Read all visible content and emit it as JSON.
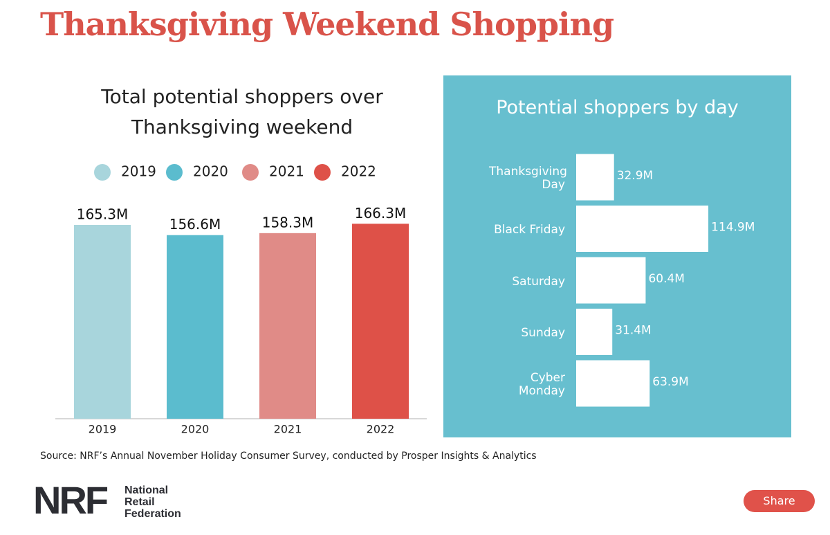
{
  "title": "Thanksgiving Weekend Shopping",
  "chart_data": [
    {
      "type": "bar",
      "title": "Total potential shoppers over Thanksgiving weekend",
      "categories": [
        "2019",
        "2020",
        "2021",
        "2022"
      ],
      "values": [
        165.3,
        156.6,
        158.3,
        166.3
      ],
      "value_labels": [
        "165.3M",
        "156.6M",
        "158.3M",
        "166.3M"
      ],
      "colors": [
        "#a8d5dc",
        "#5bbcce",
        "#e08b87",
        "#de5148"
      ],
      "legend": true
    },
    {
      "type": "hbar",
      "title": "Potential shoppers by day",
      "categories": [
        "Thanksgiving Day",
        "Black Friday",
        "Saturday",
        "Sunday",
        "Cyber Monday"
      ],
      "values": [
        32.9,
        114.9,
        60.4,
        31.4,
        63.9
      ],
      "value_labels": [
        "32.9M",
        "114.9M",
        "60.4M",
        "31.4M",
        "63.9M"
      ],
      "color": "#ffffff",
      "background": "#67bfcf"
    }
  ],
  "source": "Source: NRF’s Annual November Holiday Consumer Survey, conducted by Prosper Insights & Analytics",
  "logo": {
    "mark": "NRF",
    "name": "National Retail Federation"
  },
  "share": "Share"
}
